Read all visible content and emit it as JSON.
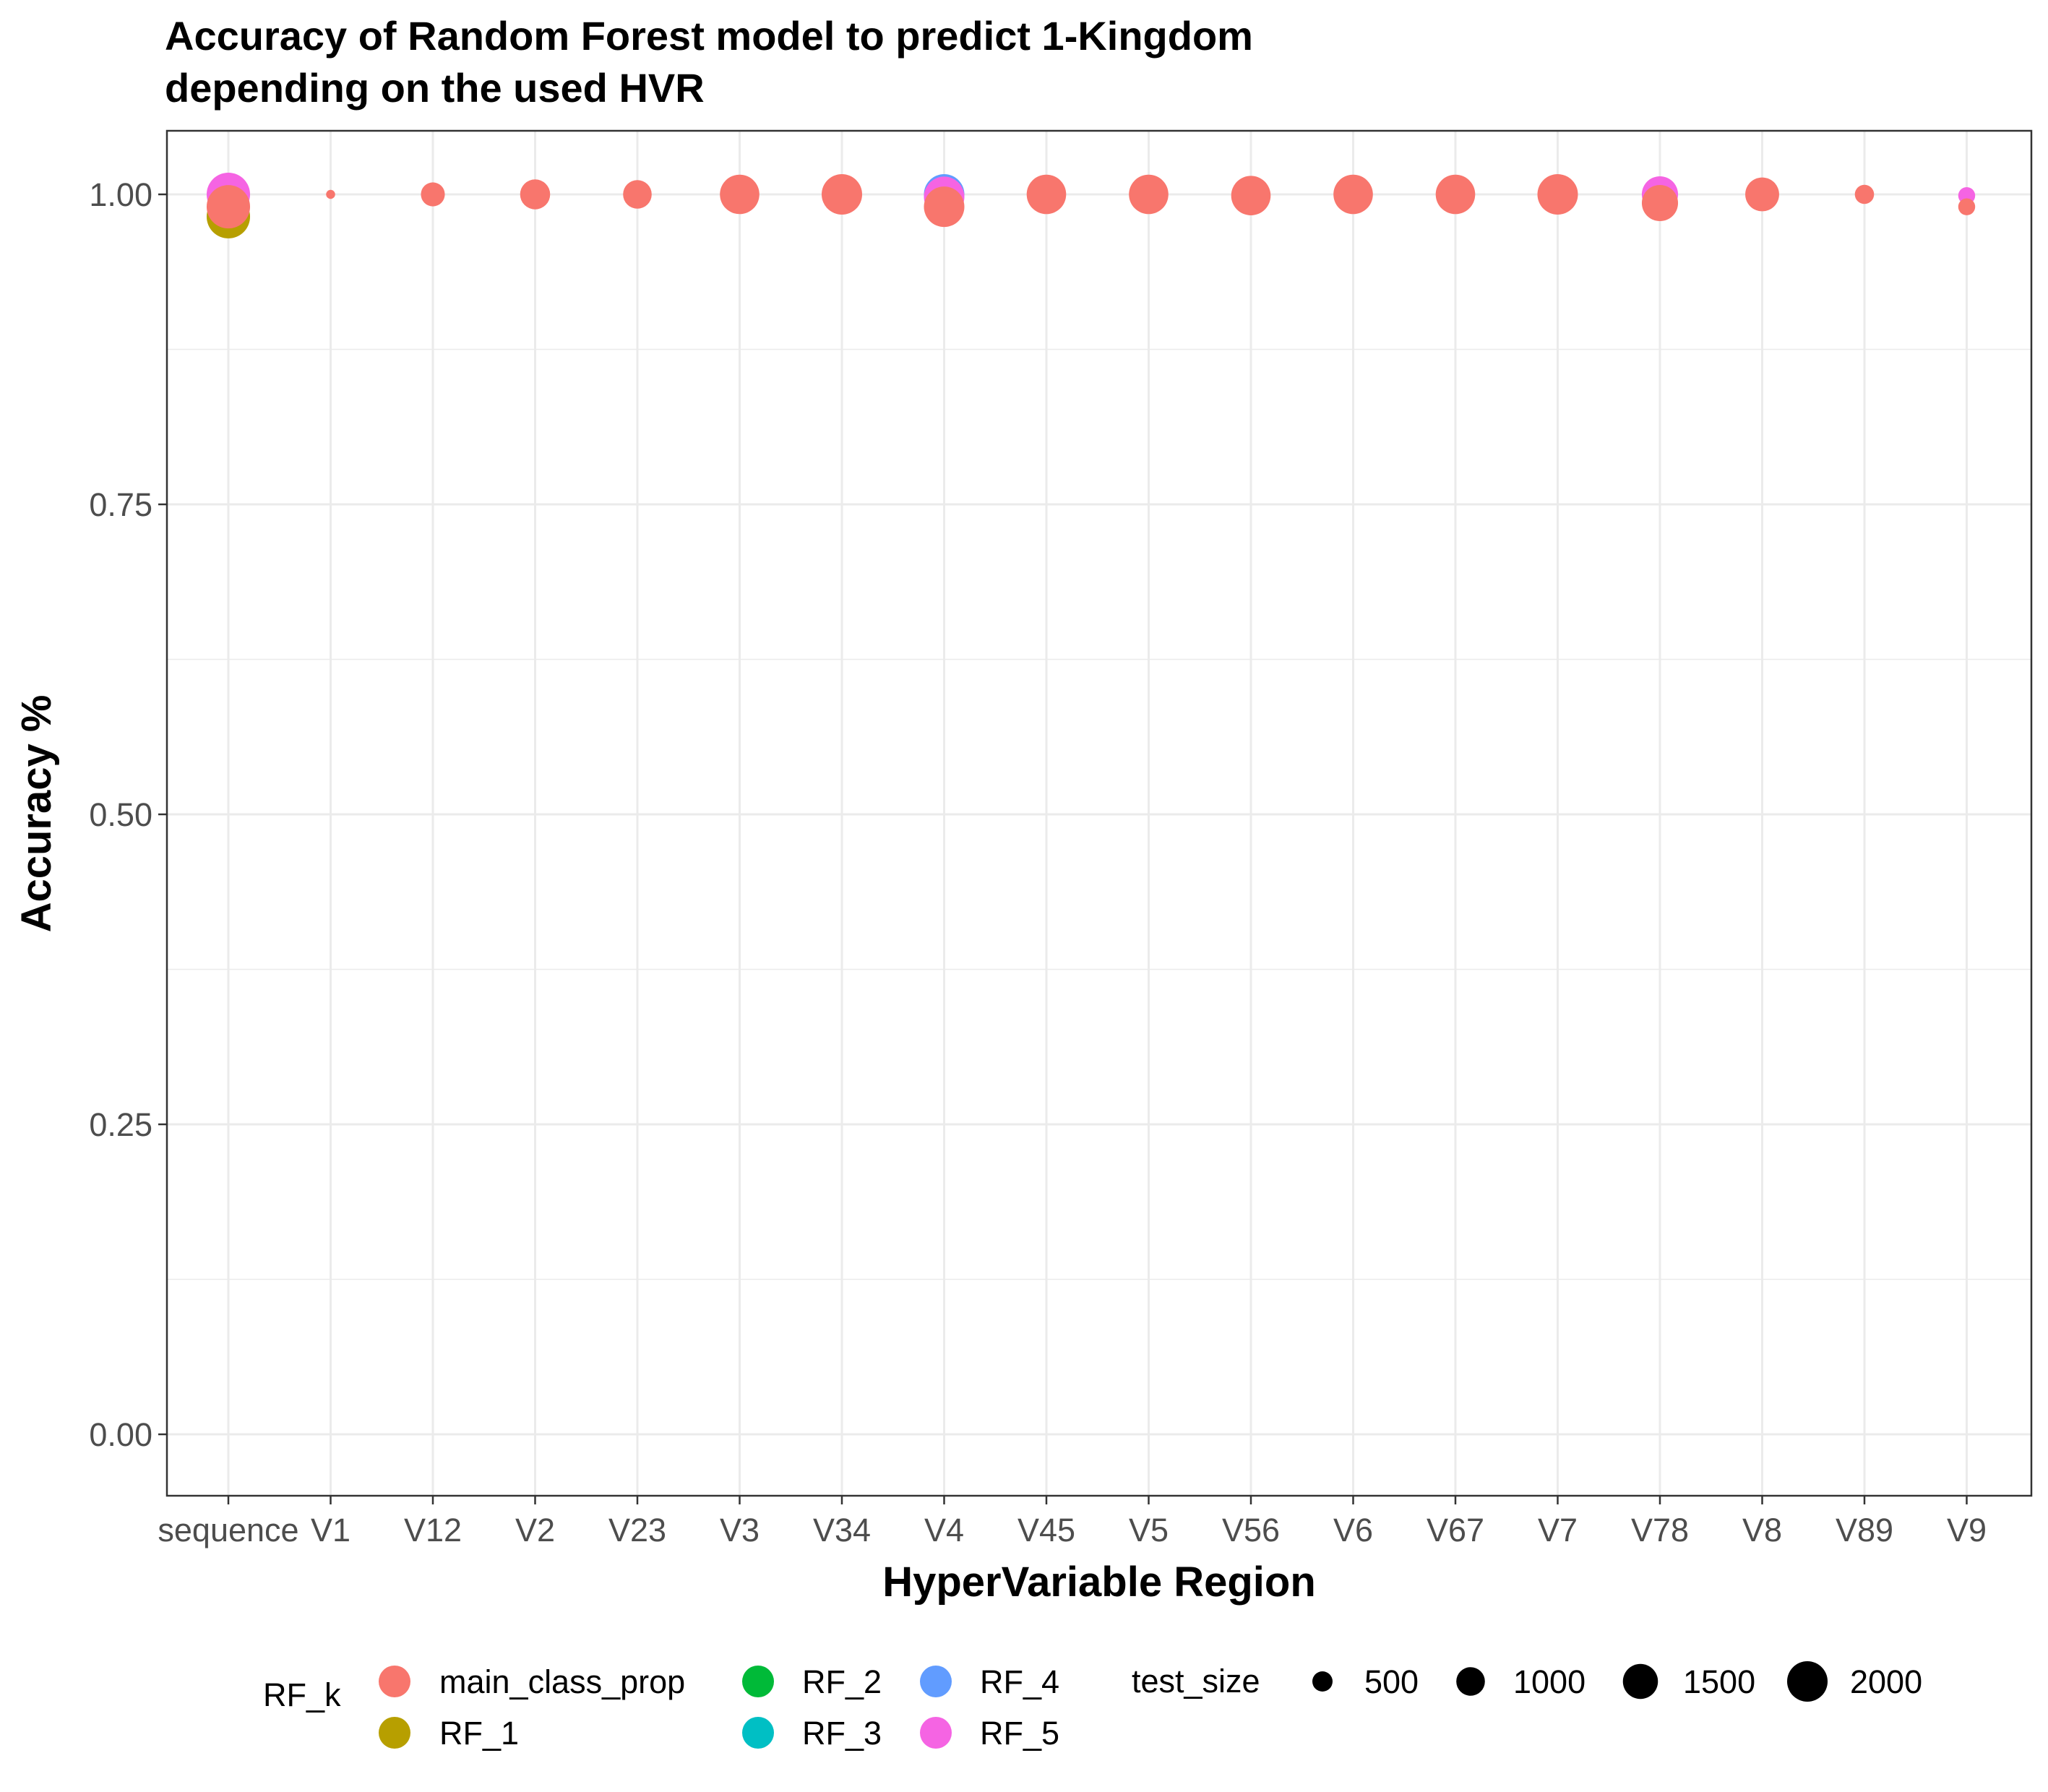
{
  "chart_data": {
    "type": "scatter",
    "title_lines": [
      "Accuracy of Random Forest model to predict 1-Kingdom",
      "depending on the used HVR"
    ],
    "xlabel": "HyperVariable Region",
    "ylabel": "Accuracy %",
    "categories": [
      "sequence",
      "V1",
      "V12",
      "V2",
      "V23",
      "V3",
      "V34",
      "V4",
      "V45",
      "V5",
      "V56",
      "V6",
      "V67",
      "V7",
      "V78",
      "V8",
      "V89",
      "V9"
    ],
    "yticks": [
      0.0,
      0.25,
      0.5,
      0.75,
      1.0
    ],
    "ytick_labels": [
      "0.00",
      "0.25",
      "0.50",
      "0.75",
      "1.00"
    ],
    "ylim": [
      -0.05,
      1.05
    ],
    "grid": true,
    "legend_position": "bottom",
    "color_legend": {
      "title": "RF_k",
      "entries": [
        {
          "name": "main_class_prop",
          "color": "#F8766D"
        },
        {
          "name": "RF_1",
          "color": "#B79F00"
        },
        {
          "name": "RF_2",
          "color": "#00BA38"
        },
        {
          "name": "RF_3",
          "color": "#00BFC4"
        },
        {
          "name": "RF_4",
          "color": "#619CFF"
        },
        {
          "name": "RF_5",
          "color": "#F564E3"
        }
      ]
    },
    "size_legend": {
      "title": "test_size",
      "entries": [
        {
          "label": "500",
          "value": 500
        },
        {
          "label": "1000",
          "value": 1000
        },
        {
          "label": "1500",
          "value": 1500
        },
        {
          "label": "2000",
          "value": 2000
        }
      ]
    },
    "points": [
      {
        "x": "sequence",
        "series": "RF_1",
        "y": 0.982,
        "size": 2300
      },
      {
        "x": "sequence",
        "series": "RF_5",
        "y": 1.0,
        "size": 2300
      },
      {
        "x": "sequence",
        "series": "main_class_prop",
        "y": 0.99,
        "size": 2300
      },
      {
        "x": "V1",
        "series": "main_class_prop",
        "y": 1.0,
        "size": 100
      },
      {
        "x": "V12",
        "series": "main_class_prop",
        "y": 1.0,
        "size": 700
      },
      {
        "x": "V2",
        "series": "main_class_prop",
        "y": 1.0,
        "size": 1100
      },
      {
        "x": "V23",
        "series": "main_class_prop",
        "y": 1.0,
        "size": 1000
      },
      {
        "x": "V3",
        "series": "main_class_prop",
        "y": 1.0,
        "size": 1900
      },
      {
        "x": "V34",
        "series": "main_class_prop",
        "y": 1.0,
        "size": 2000
      },
      {
        "x": "V4",
        "series": "RF_4",
        "y": 1.0,
        "size": 2000
      },
      {
        "x": "V4",
        "series": "RF_5",
        "y": 0.998,
        "size": 2000
      },
      {
        "x": "V4",
        "series": "main_class_prop",
        "y": 0.99,
        "size": 2000
      },
      {
        "x": "V45",
        "series": "main_class_prop",
        "y": 1.0,
        "size": 1900
      },
      {
        "x": "V5",
        "series": "main_class_prop",
        "y": 1.0,
        "size": 1900
      },
      {
        "x": "V56",
        "series": "main_class_prop",
        "y": 0.999,
        "size": 1900
      },
      {
        "x": "V6",
        "series": "main_class_prop",
        "y": 1.0,
        "size": 1900
      },
      {
        "x": "V67",
        "series": "main_class_prop",
        "y": 1.0,
        "size": 1900
      },
      {
        "x": "V7",
        "series": "main_class_prop",
        "y": 1.0,
        "size": 2000
      },
      {
        "x": "V78",
        "series": "RF_5",
        "y": 1.0,
        "size": 1600
      },
      {
        "x": "V78",
        "series": "main_class_prop",
        "y": 0.993,
        "size": 1600
      },
      {
        "x": "V8",
        "series": "main_class_prop",
        "y": 1.0,
        "size": 1400
      },
      {
        "x": "V89",
        "series": "main_class_prop",
        "y": 1.0,
        "size": 450
      },
      {
        "x": "V9",
        "series": "RF_5",
        "y": 0.999,
        "size": 350
      },
      {
        "x": "V9",
        "series": "main_class_prop",
        "y": 0.99,
        "size": 350
      }
    ]
  }
}
